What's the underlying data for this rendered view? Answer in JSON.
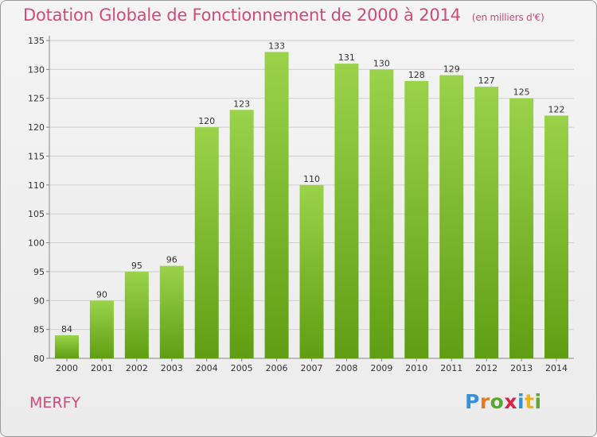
{
  "header": {
    "title": "Dotation Globale de Fonctionnement de 2000 à 2014",
    "unit": "(en milliers d'€)"
  },
  "footer": {
    "commune": "MERFY",
    "logo_letters": [
      "P",
      "r",
      "o",
      "x",
      "i",
      "t",
      "i"
    ],
    "logo_colors": [
      "#3a8fd6",
      "#e87a1e",
      "#5aa832",
      "#d9234b",
      "#3a8fd6",
      "#f2b21c",
      "#5aa832"
    ]
  },
  "chart_data": {
    "type": "bar",
    "title": "Dotation Globale de Fonctionnement de 2000 à 2014",
    "subtitle": "(en milliers d'€)",
    "xlabel": "",
    "ylabel": "",
    "categories": [
      "2000",
      "2001",
      "2002",
      "2003",
      "2004",
      "2005",
      "2006",
      "2007",
      "2008",
      "2009",
      "2010",
      "2011",
      "2012",
      "2013",
      "2014"
    ],
    "values": [
      84,
      90,
      95,
      96,
      120,
      123,
      133,
      110,
      131,
      130,
      128,
      129,
      127,
      125,
      122
    ],
    "ylim": [
      80,
      135
    ],
    "yticks": [
      80,
      85,
      90,
      95,
      100,
      105,
      110,
      115,
      120,
      125,
      130,
      135
    ],
    "grid": true,
    "colors": {
      "bar_top": "#9ad34a",
      "bar_bottom": "#5f9e12",
      "grid": "#cfcfcf"
    }
  }
}
